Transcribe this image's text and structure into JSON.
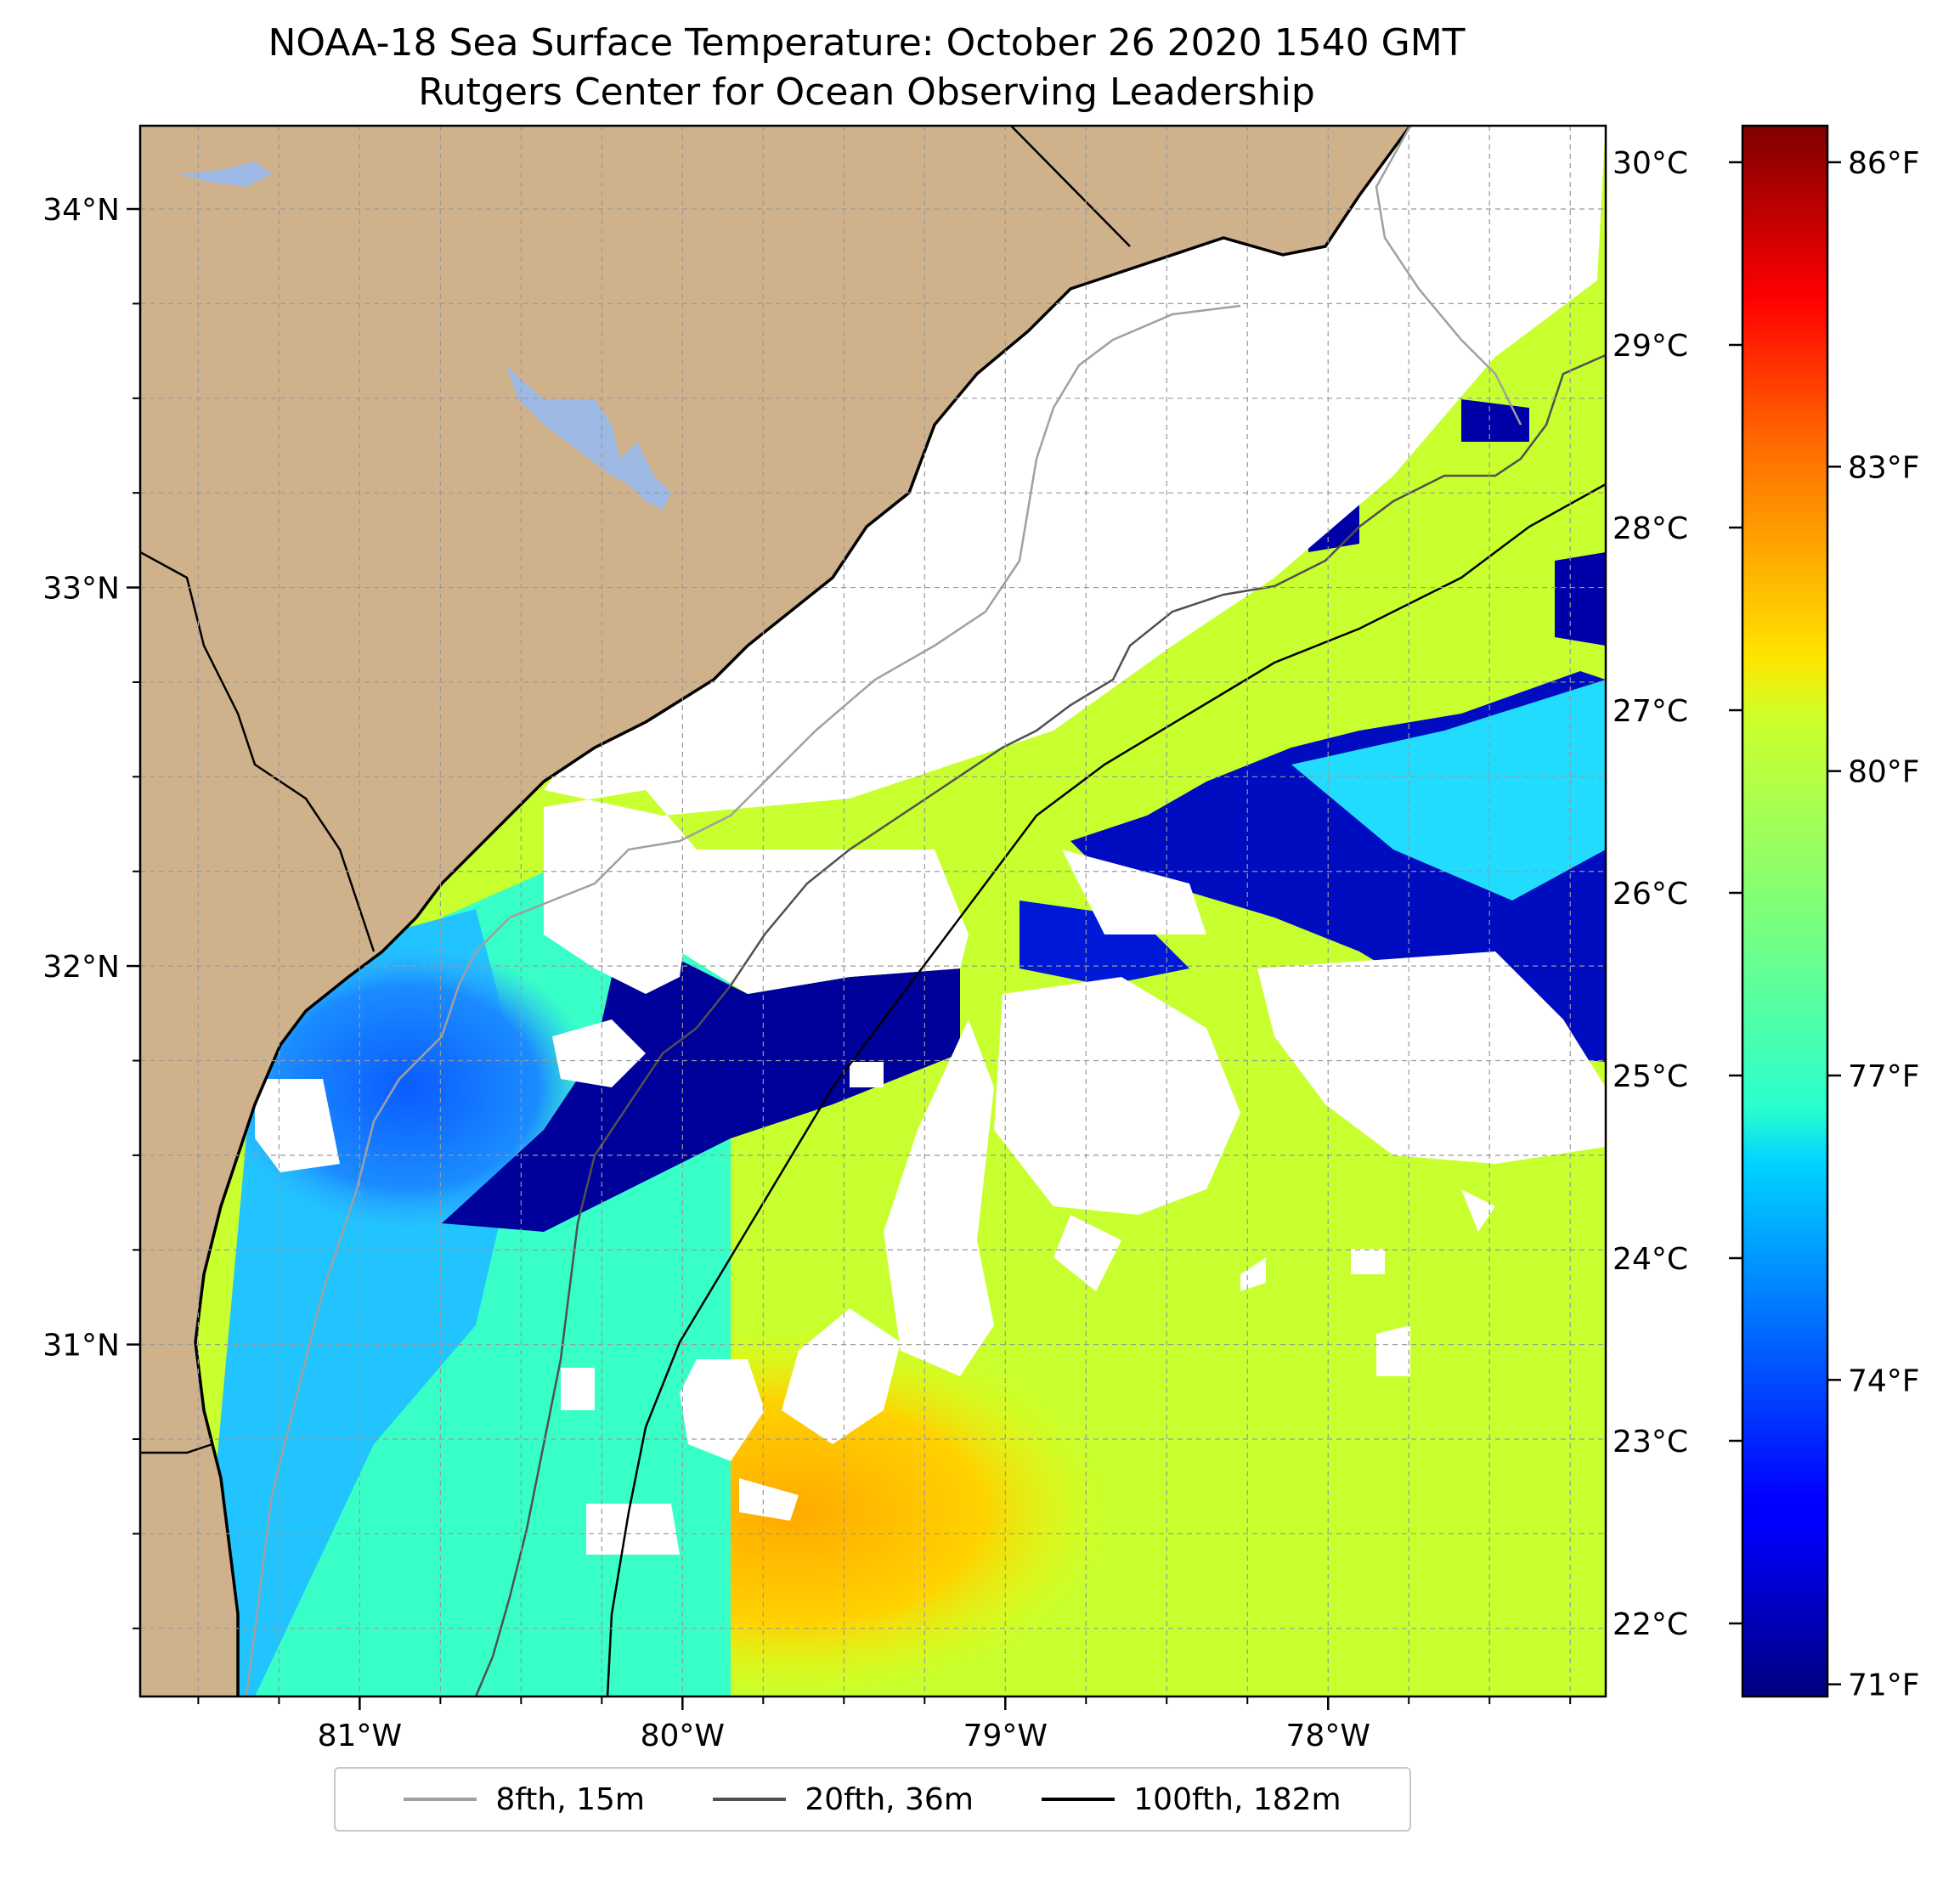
{
  "title": {
    "line1": "NOAA-18 Sea Surface Temperature: October 26 2020 1540 GMT",
    "line2": "Rutgers Center for Ocean Observing Leadership"
  },
  "map": {
    "lon_range": [
      -81.68,
      -77.14
    ],
    "lat_range": [
      30.07,
      34.22
    ],
    "lon_ticks": [
      {
        "value": -81,
        "label": "81°W"
      },
      {
        "value": -80,
        "label": "80°W"
      },
      {
        "value": -79,
        "label": "79°W"
      },
      {
        "value": -78,
        "label": "78°W"
      }
    ],
    "lat_ticks": [
      {
        "value": 31,
        "label": "31°N"
      },
      {
        "value": 32,
        "label": "32°N"
      },
      {
        "value": 33,
        "label": "33°N"
      },
      {
        "value": 34,
        "label": "34°N"
      }
    ],
    "gridlines": "dashed",
    "land_color": "#cfb28b",
    "lake_color": "#9db8e3",
    "coastline_color": "#000000",
    "colormap": "jet",
    "clouds_masked": "white"
  },
  "colorbar": {
    "range_c": [
      21.6,
      30.2
    ],
    "celsius_ticks": [
      {
        "value": 22,
        "label": "22°C"
      },
      {
        "value": 23,
        "label": "23°C"
      },
      {
        "value": 24,
        "label": "24°C"
      },
      {
        "value": 25,
        "label": "25°C"
      },
      {
        "value": 26,
        "label": "26°C"
      },
      {
        "value": 27,
        "label": "27°C"
      },
      {
        "value": 28,
        "label": "28°C"
      },
      {
        "value": 29,
        "label": "29°C"
      },
      {
        "value": 30,
        "label": "30°C"
      }
    ],
    "fahrenheit_ticks": [
      {
        "value": 71,
        "label": "71°F"
      },
      {
        "value": 74,
        "label": "74°F"
      },
      {
        "value": 77,
        "label": "77°F"
      },
      {
        "value": 80,
        "label": "80°F"
      },
      {
        "value": 83,
        "label": "83°F"
      },
      {
        "value": 86,
        "label": "86°F"
      }
    ]
  },
  "legend": {
    "placement": "bottom-center",
    "items": [
      {
        "label": "8fth, 15m",
        "color": "#a0a0a0"
      },
      {
        "label": "20fth, 36m",
        "color": "#505050"
      },
      {
        "label": "100fth, 182m",
        "color": "#000000"
      }
    ]
  }
}
